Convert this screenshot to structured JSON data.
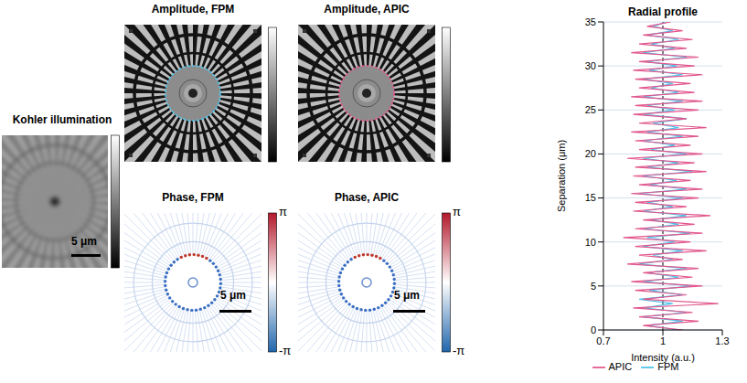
{
  "panels": [
    {
      "title": "Kohler illumination",
      "type": "widefield",
      "scale_bar": "5 μm",
      "colorbar": {
        "colors": [
          "#ffffff",
          "#000000"
        ]
      }
    },
    {
      "title": "Amplitude, FPM",
      "type": "amplitude",
      "color": "#4ec3ea",
      "colorbar": {
        "colors": [
          "#ffffff",
          "#000000"
        ]
      }
    },
    {
      "title": "Amplitude, APIC",
      "type": "amplitude",
      "color": "#e2578d",
      "colorbar": {
        "colors": [
          "#ffffff",
          "#000000"
        ]
      }
    },
    {
      "title": "Phase, FPM",
      "type": "phase",
      "scale_bar": "5 μm",
      "colorbar": {
        "colors": [
          "#b2182b",
          "#ffffff",
          "#2166ac"
        ],
        "range": [
          -3.14159,
          3.14159
        ],
        "ticks": [
          {
            "value": 3.14159,
            "label": "π"
          },
          {
            "value": -3.14159,
            "label": "-π"
          }
        ]
      }
    },
    {
      "title": "Phase, APIC",
      "type": "phase",
      "scale_bar": "5 μm",
      "colorbar": {
        "colors": [
          "#b2182b",
          "#ffffff",
          "#2166ac"
        ],
        "range": [
          -3.14159,
          3.14159
        ],
        "ticks": [
          {
            "value": 3.14159,
            "label": "π"
          },
          {
            "value": -3.14159,
            "label": "-π"
          }
        ]
      }
    }
  ],
  "chart_data": {
    "type": "line",
    "title": "Radial profile",
    "x_label": "Intensity (a.u.)",
    "y_label": "Separation (μm)",
    "y": [
      0,
      0.5,
      1,
      1.5,
      2,
      2.5,
      3,
      3.5,
      4,
      4.5,
      5,
      5.5,
      6,
      6.5,
      7,
      7.5,
      8,
      8.5,
      9,
      9.5,
      10,
      10.5,
      11,
      11.5,
      12,
      12.5,
      13,
      13.5,
      14,
      14.5,
      15,
      15.5,
      16,
      16.5,
      17,
      17.5,
      18,
      18.5,
      19,
      19.5,
      20,
      20.5,
      21,
      21.5,
      22,
      22.5,
      23,
      23.5,
      24,
      24.5,
      25,
      25.5,
      26,
      26.5,
      27,
      27.5,
      28,
      28.5,
      29,
      29.5,
      30,
      30.5,
      31,
      31.5,
      32,
      32.5,
      33,
      33.5,
      34,
      34.5,
      35
    ],
    "series": [
      {
        "name": "FPM",
        "color": "#4ec3ea",
        "values": [
          1.08,
          0.92,
          1.1,
          0.9,
          1.12,
          0.9,
          1.05,
          0.88,
          1.1,
          0.93,
          1.15,
          0.9,
          1.08,
          0.92,
          1.12,
          0.88,
          1.05,
          0.95,
          1.1,
          0.9,
          1.06,
          0.92,
          1.14,
          0.9,
          1.08,
          0.94,
          1.12,
          0.9,
          1.05,
          0.92,
          1.1,
          0.88,
          1.12,
          0.93,
          1.07,
          0.9,
          1.15,
          0.92,
          1.08,
          0.9,
          1.12,
          0.94,
          1.06,
          0.9,
          1.1,
          0.92,
          1.08,
          0.95,
          1.12,
          0.9,
          1.06,
          0.92,
          1.1,
          0.9,
          1.08,
          0.94,
          1.05,
          0.9,
          1.1,
          0.93,
          1.07,
          0.92,
          1.12,
          0.9,
          1.06,
          0.94,
          1.08,
          0.92,
          1.05,
          0.95,
          1.02
        ]
      },
      {
        "name": "APIC",
        "color": "#e2578d",
        "values": [
          1.1,
          0.9,
          1.18,
          0.88,
          1.15,
          0.85,
          1.28,
          0.9,
          1.12,
          0.86,
          1.2,
          0.84,
          1.15,
          0.9,
          1.18,
          0.82,
          1.1,
          0.88,
          1.22,
          0.86,
          1.14,
          0.8,
          1.2,
          0.86,
          1.16,
          0.9,
          1.24,
          0.85,
          1.12,
          0.86,
          1.18,
          0.84,
          1.2,
          0.88,
          1.14,
          0.85,
          1.22,
          0.86,
          1.16,
          0.82,
          1.2,
          0.88,
          1.14,
          0.86,
          1.18,
          0.84,
          1.22,
          0.88,
          1.12,
          0.85,
          1.18,
          0.86,
          1.2,
          0.84,
          1.16,
          0.88,
          1.14,
          0.86,
          1.2,
          0.85,
          1.16,
          0.88,
          1.18,
          0.84,
          1.12,
          0.88,
          1.15,
          0.9,
          1.1,
          0.92,
          1.04
        ]
      }
    ],
    "xlim": [
      0.7,
      1.3
    ],
    "xticks": [
      0.7,
      1,
      1.3
    ],
    "ylim": [
      0,
      35
    ],
    "yticks": [
      0,
      5,
      10,
      15,
      20,
      25,
      30,
      35
    ],
    "reference_line": 1,
    "grid": true,
    "legend": "bottom"
  }
}
